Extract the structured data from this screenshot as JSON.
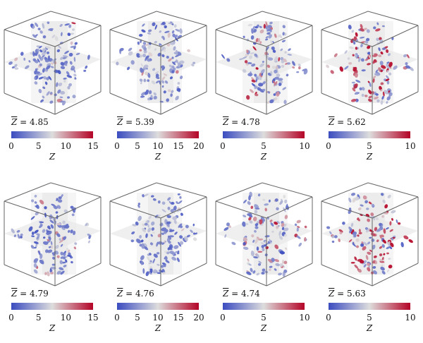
{
  "colors": {
    "cold": "#3b4cc0",
    "neutral": "#dddddd",
    "hot": "#b40426",
    "frame": "#666666",
    "slice": "#e8e8e8"
  },
  "chart_data": [
    {
      "type": "3d-slice-colormap",
      "row": 1,
      "col": 1,
      "mean_label": "4.85",
      "colorbar": {
        "label": "Z",
        "min": 0,
        "max": 15,
        "ticks": [
          0,
          5,
          10,
          15
        ]
      }
    },
    {
      "type": "3d-slice-colormap",
      "row": 1,
      "col": 2,
      "mean_label": "5.39",
      "colorbar": {
        "label": "Z",
        "min": 0,
        "max": 20,
        "ticks": [
          0,
          5,
          10,
          15,
          20
        ]
      }
    },
    {
      "type": "3d-slice-colormap",
      "row": 1,
      "col": 3,
      "mean_label": "4.78",
      "colorbar": {
        "label": "Z",
        "min": 0,
        "max": 10,
        "ticks": [
          0,
          5,
          10
        ]
      }
    },
    {
      "type": "3d-slice-colormap",
      "row": 1,
      "col": 4,
      "mean_label": "5.62",
      "colorbar": {
        "label": "Z",
        "min": 0,
        "max": 10,
        "ticks": [
          0,
          5,
          10
        ]
      }
    },
    {
      "type": "3d-slice-colormap",
      "row": 2,
      "col": 1,
      "mean_label": "4.79",
      "colorbar": {
        "label": "Z",
        "min": 0,
        "max": 15,
        "ticks": [
          0,
          5,
          10,
          15
        ]
      }
    },
    {
      "type": "3d-slice-colormap",
      "row": 2,
      "col": 2,
      "mean_label": "4.76",
      "colorbar": {
        "label": "Z",
        "min": 0,
        "max": 20,
        "ticks": [
          0,
          5,
          10,
          15,
          20
        ]
      }
    },
    {
      "type": "3d-slice-colormap",
      "row": 2,
      "col": 3,
      "mean_label": "4.74",
      "colorbar": {
        "label": "Z",
        "min": 0,
        "max": 10,
        "ticks": [
          0,
          5,
          10
        ]
      }
    },
    {
      "type": "3d-slice-colormap",
      "row": 2,
      "col": 4,
      "mean_label": "5.63",
      "colorbar": {
        "label": "Z",
        "min": 0,
        "max": 10,
        "ticks": [
          0,
          5,
          10
        ]
      }
    }
  ],
  "panel_stats": [
    {
      "mean": 4.85
    },
    {
      "mean": 5.39
    },
    {
      "mean": 4.78
    },
    {
      "mean": 5.62
    },
    {
      "mean": 4.79
    },
    {
      "mean": 4.76
    },
    {
      "mean": 4.74
    },
    {
      "mean": 5.63
    }
  ]
}
